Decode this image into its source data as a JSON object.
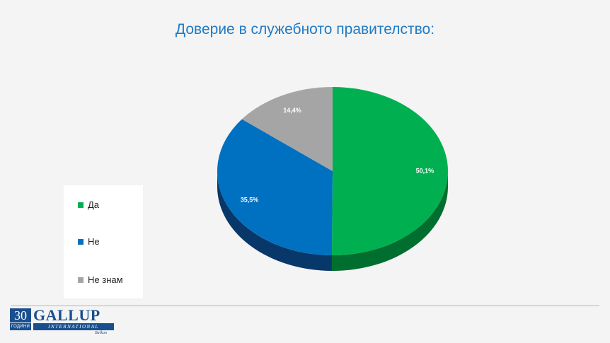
{
  "title": "Доверие в служебното правителство:",
  "chart_data": {
    "type": "pie",
    "title": "Доверие в служебното правителство:",
    "slices": [
      {
        "label": "Да",
        "value": 50.1,
        "value_label": "50,1%",
        "color": "#00b050",
        "side_color": "#006e2e"
      },
      {
        "label": "Не",
        "value": 35.5,
        "value_label": "35,5%",
        "color": "#0070c0",
        "side_color": "#08386a"
      },
      {
        "label": "Не знам",
        "value": 14.4,
        "value_label": "14,4%",
        "color": "#a5a5a5",
        "side_color": "#6d6d6d"
      }
    ],
    "legend_position": "left"
  },
  "legend": {
    "items": [
      {
        "label": "Да",
        "color": "#00b050"
      },
      {
        "label": "Не",
        "color": "#0070c0"
      },
      {
        "label": "Не знам",
        "color": "#a5a5a5"
      }
    ]
  },
  "logo": {
    "number": "30",
    "sub": "ГОДИНИ",
    "name": "GALLUP",
    "intl": "INTERNATIONAL",
    "region": "Balkan"
  }
}
